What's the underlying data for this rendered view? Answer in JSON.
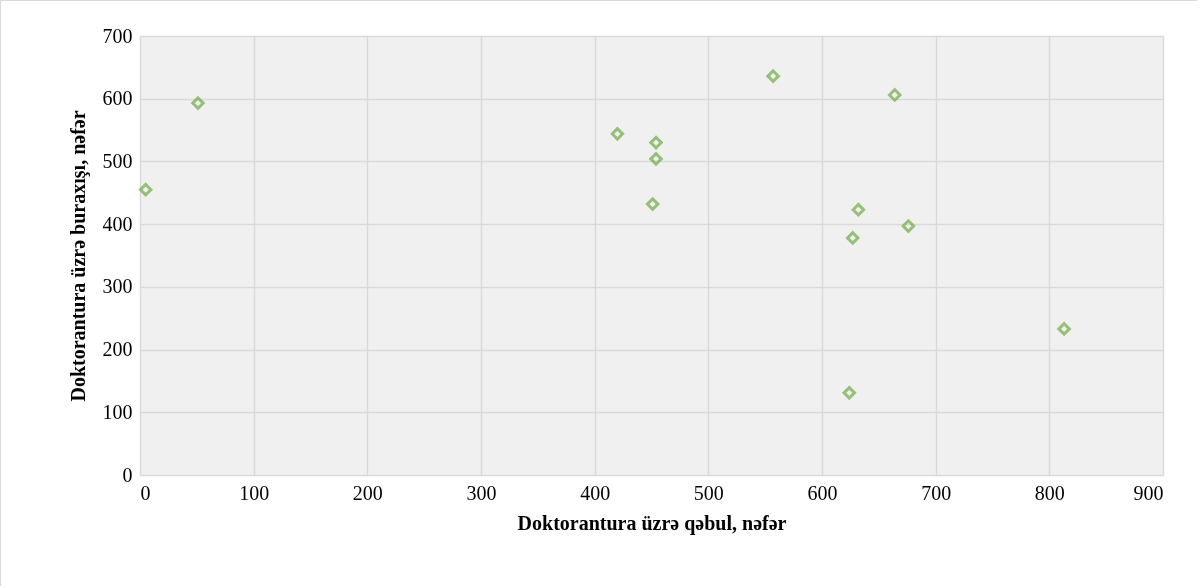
{
  "chart_data": {
    "type": "scatter",
    "xlabel": "Doktorantura üzrə qəbul, nəfər",
    "ylabel": "Doktorantura üzrə buraxışı, nəfər",
    "x": [
      5,
      51,
      420,
      454,
      454,
      451,
      557,
      664,
      632,
      627,
      676,
      624,
      813
    ],
    "series": [
      {
        "color": "#70ad47",
        "values": [
          455,
          593,
          544,
          530,
          504,
          432,
          636,
          606,
          423,
          378,
          397,
          131,
          233
        ]
      }
    ],
    "xlim": [
      0,
      900
    ],
    "xticks": [
      0,
      100,
      200,
      300,
      400,
      500,
      600,
      700,
      800,
      900
    ],
    "ylim": [
      0,
      700
    ],
    "yticks": [
      0,
      100,
      200,
      300,
      400,
      500,
      600,
      700
    ],
    "grid": true,
    "marker": "diamond"
  }
}
